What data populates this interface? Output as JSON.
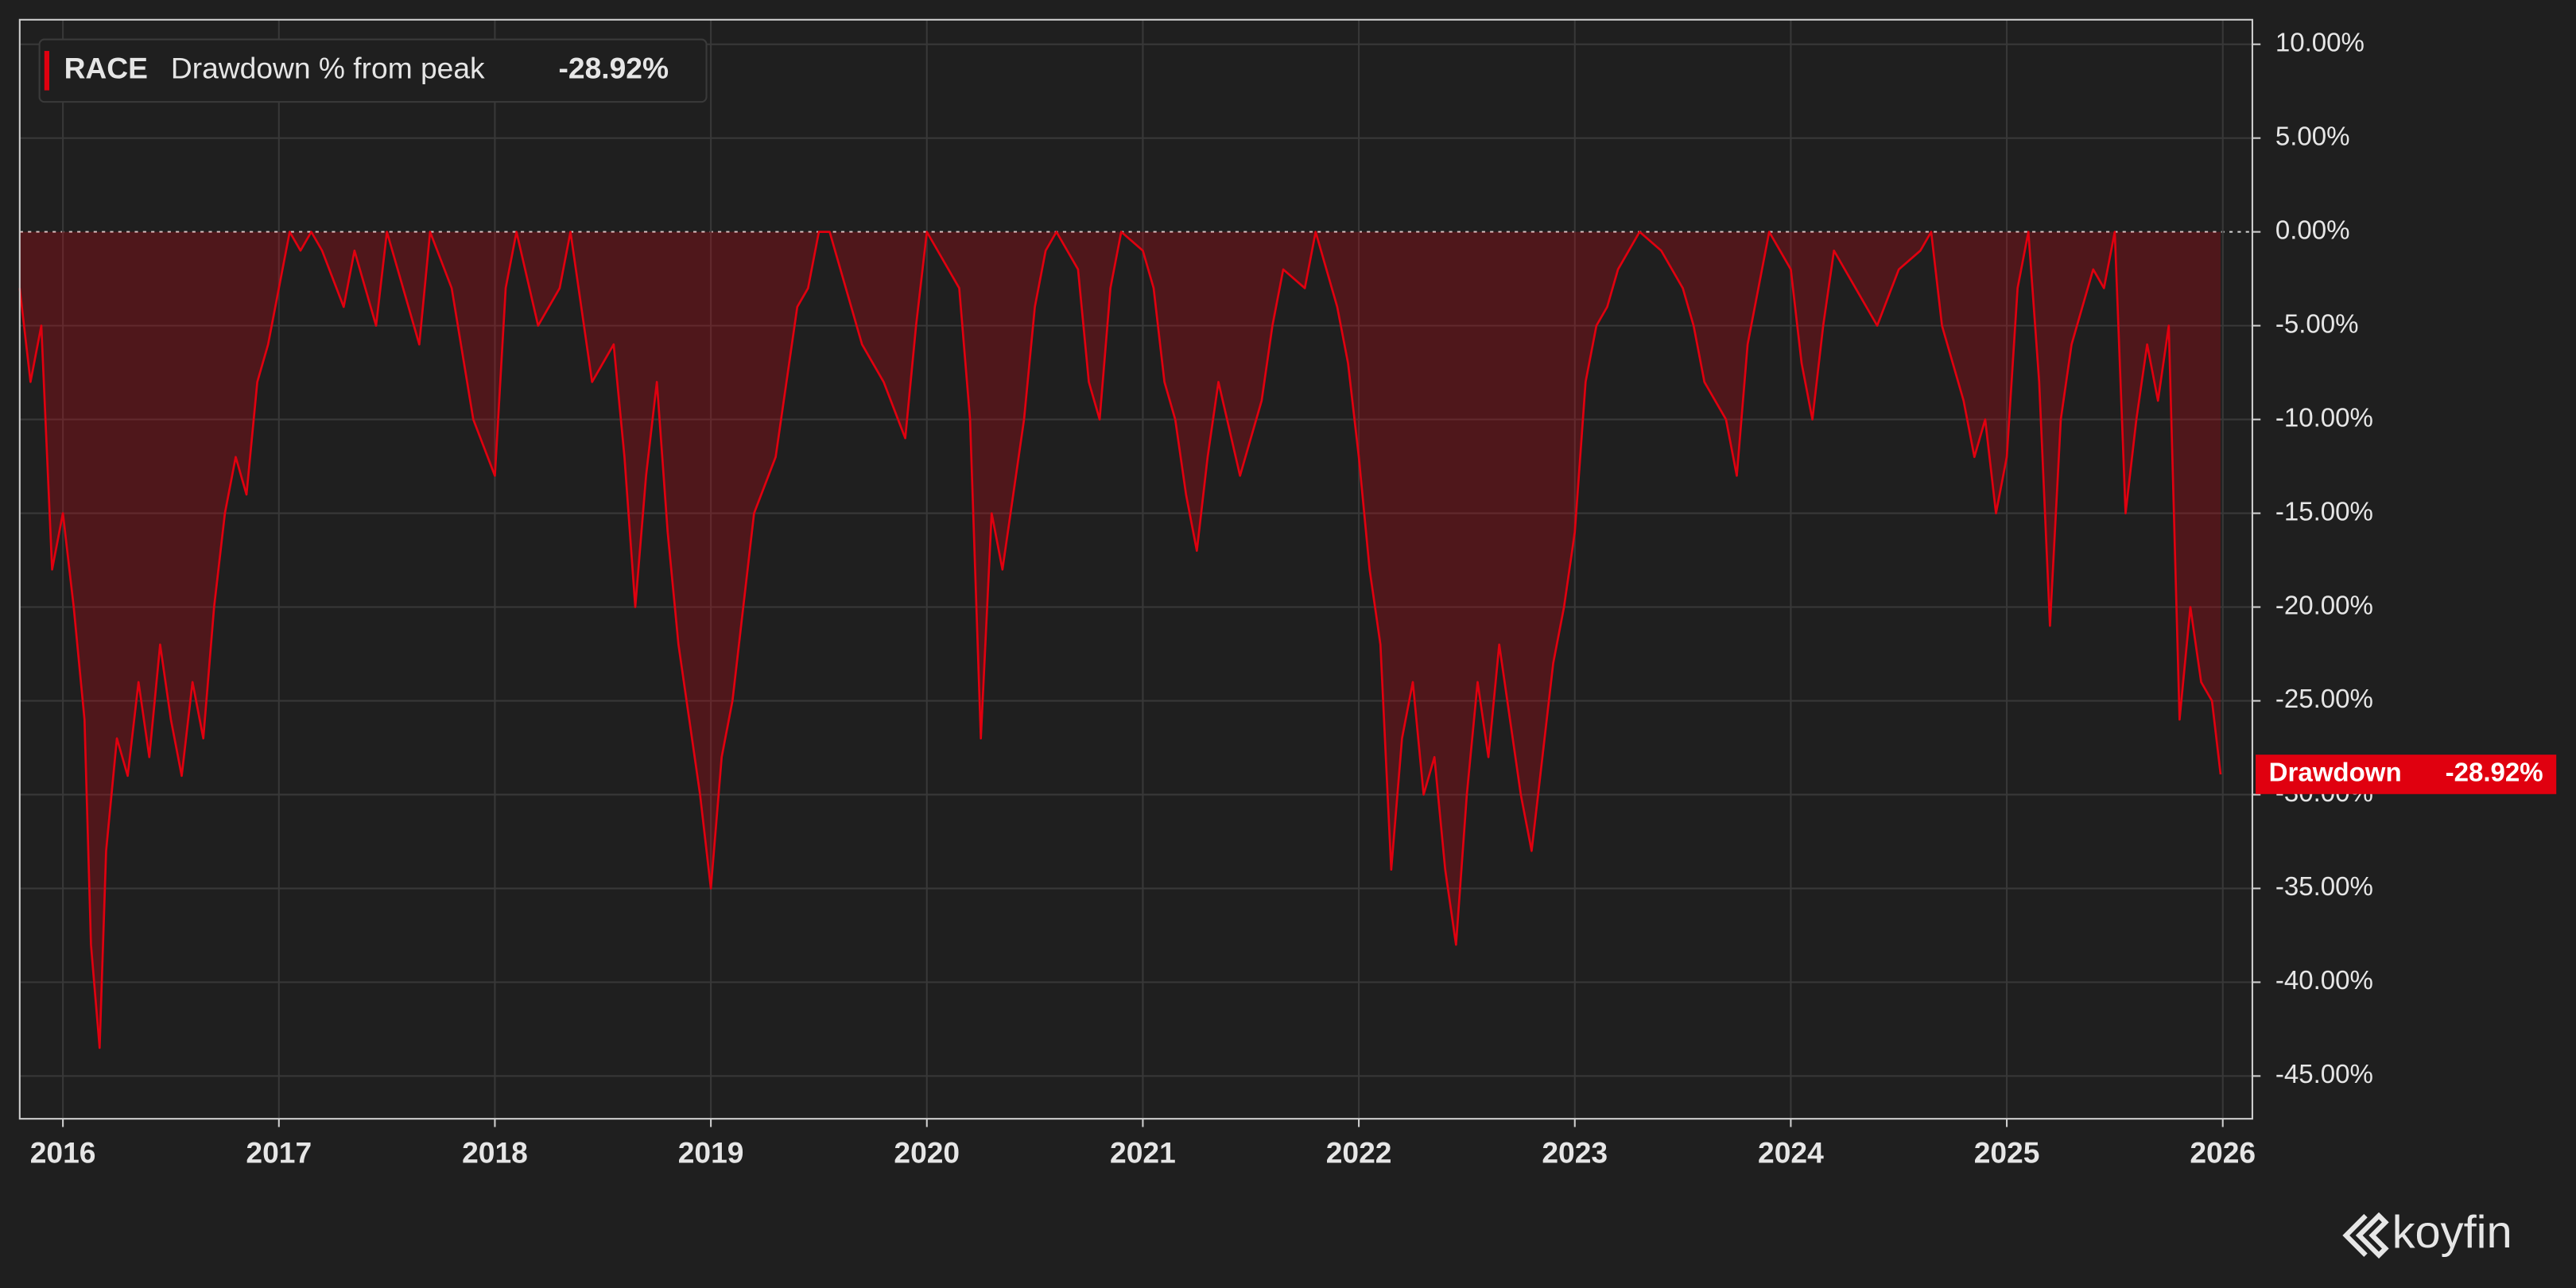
{
  "chart_data": {
    "type": "line",
    "ticker": "RACE",
    "series_label": "Drawdown % from peak",
    "current_label": "-28.92%",
    "tag_label": "Drawdown",
    "logo": "koyfin",
    "xlim": [
      2015.8,
      2026.137
    ],
    "xticks": [
      2016,
      2017,
      2018,
      2019,
      2020,
      2021,
      2022,
      2023,
      2024,
      2025,
      2026
    ],
    "ylim": [
      -47.28,
      11.31
    ],
    "yticks": [
      {
        "value": 10,
        "label": "10.00%"
      },
      {
        "value": 5,
        "label": "5.00%"
      },
      {
        "value": 0,
        "label": "0.00%"
      },
      {
        "value": -5,
        "label": "-5.00%"
      },
      {
        "value": -10,
        "label": "-10.00%"
      },
      {
        "value": -15,
        "label": "-15.00%"
      },
      {
        "value": -20,
        "label": "-20.00%"
      },
      {
        "value": -25,
        "label": "-25.00%"
      },
      {
        "value": -30,
        "label": "-30.00%"
      },
      {
        "value": -35,
        "label": "-35.00%"
      },
      {
        "value": -40,
        "label": "-40.00%"
      },
      {
        "value": -45,
        "label": "-45.00%"
      }
    ],
    "grid": true,
    "color": "#e0000f",
    "x": [
      2015.8,
      2015.85,
      2015.9,
      2015.95,
      2016.0,
      2016.05,
      2016.1,
      2016.13,
      2016.17,
      2016.2,
      2016.25,
      2016.3,
      2016.35,
      2016.4,
      2016.45,
      2016.5,
      2016.55,
      2016.6,
      2016.65,
      2016.7,
      2016.75,
      2016.8,
      2016.85,
      2016.9,
      2016.95,
      2017.0,
      2017.05,
      2017.1,
      2017.15,
      2017.2,
      2017.3,
      2017.35,
      2017.45,
      2017.5,
      2017.6,
      2017.65,
      2017.7,
      2017.8,
      2017.9,
      2018.0,
      2018.05,
      2018.1,
      2018.2,
      2018.3,
      2018.35,
      2018.45,
      2018.55,
      2018.6,
      2018.65,
      2018.7,
      2018.75,
      2018.8,
      2018.85,
      2018.9,
      2018.95,
      2019.0,
      2019.05,
      2019.1,
      2019.15,
      2019.2,
      2019.3,
      2019.35,
      2019.4,
      2019.45,
      2019.5,
      2019.55,
      2019.6,
      2019.7,
      2019.8,
      2019.9,
      2019.95,
      2020.0,
      2020.05,
      2020.1,
      2020.15,
      2020.2,
      2020.25,
      2020.3,
      2020.35,
      2020.4,
      2020.45,
      2020.5,
      2020.55,
      2020.6,
      2020.7,
      2020.75,
      2020.8,
      2020.85,
      2020.9,
      2021.0,
      2021.05,
      2021.1,
      2021.15,
      2021.2,
      2021.25,
      2021.3,
      2021.35,
      2021.45,
      2021.55,
      2021.6,
      2021.65,
      2021.75,
      2021.8,
      2021.9,
      2021.95,
      2022.0,
      2022.05,
      2022.1,
      2022.15,
      2022.2,
      2022.25,
      2022.3,
      2022.35,
      2022.4,
      2022.45,
      2022.5,
      2022.55,
      2022.6,
      2022.65,
      2022.7,
      2022.75,
      2022.8,
      2022.85,
      2022.9,
      2022.95,
      2023.0,
      2023.05,
      2023.1,
      2023.15,
      2023.2,
      2023.3,
      2023.4,
      2023.5,
      2023.55,
      2023.6,
      2023.7,
      2023.75,
      2023.8,
      2023.9,
      2024.0,
      2024.05,
      2024.1,
      2024.15,
      2024.2,
      2024.3,
      2024.4,
      2024.5,
      2024.6,
      2024.65,
      2024.7,
      2024.8,
      2024.85,
      2024.9,
      2024.95,
      2025.0,
      2025.05,
      2025.1,
      2025.15,
      2025.2,
      2025.25,
      2025.3,
      2025.35,
      2025.4,
      2025.45,
      2025.5,
      2025.55,
      2025.6,
      2025.65,
      2025.7,
      2025.75,
      2025.8,
      2025.85,
      2025.9,
      2025.95,
      2025.99
    ],
    "values": [
      -3,
      -8,
      -5,
      -18,
      -15,
      -20,
      -26,
      -38,
      -43.5,
      -33,
      -27,
      -29,
      -24,
      -28,
      -22,
      -26,
      -29,
      -24,
      -27,
      -20,
      -15,
      -12,
      -14,
      -8,
      -6,
      -3,
      0,
      -1,
      0,
      -1,
      -4,
      -1,
      -5,
      0,
      -4,
      -6,
      0,
      -3,
      -10,
      -13,
      -3,
      0,
      -5,
      -3,
      0,
      -8,
      -6,
      -12,
      -20,
      -13,
      -8,
      -16,
      -22,
      -26,
      -30,
      -35,
      -28,
      -25,
      -20,
      -15,
      -12,
      -8,
      -4,
      -3,
      0,
      0,
      -2,
      -6,
      -8,
      -11,
      -5,
      0,
      -1,
      -2,
      -3,
      -10,
      -27,
      -15,
      -18,
      -14,
      -10,
      -4,
      -1,
      0,
      -2,
      -8,
      -10,
      -3,
      0,
      -1,
      -3,
      -8,
      -10,
      -14,
      -17,
      -12,
      -8,
      -13,
      -9,
      -5,
      -2,
      -3,
      0,
      -4,
      -7,
      -12,
      -18,
      -22,
      -34,
      -27,
      -24,
      -30,
      -28,
      -34,
      -38,
      -30,
      -24,
      -28,
      -22,
      -26,
      -30,
      -33,
      -28,
      -23,
      -20,
      -16,
      -8,
      -5,
      -4,
      -2,
      0,
      -1,
      -3,
      -5,
      -8,
      -10,
      -13,
      -6,
      0,
      -2,
      -7,
      -10,
      -5,
      -1,
      -3,
      -5,
      -2,
      -1,
      0,
      -5,
      -9,
      -12,
      -10,
      -15,
      -12,
      -3,
      0,
      -8,
      -21,
      -10,
      -6,
      -4,
      -2,
      -3,
      0,
      -15,
      -10,
      -6,
      -9,
      -5,
      -26,
      -20,
      -24,
      -25,
      -28.92
    ]
  }
}
